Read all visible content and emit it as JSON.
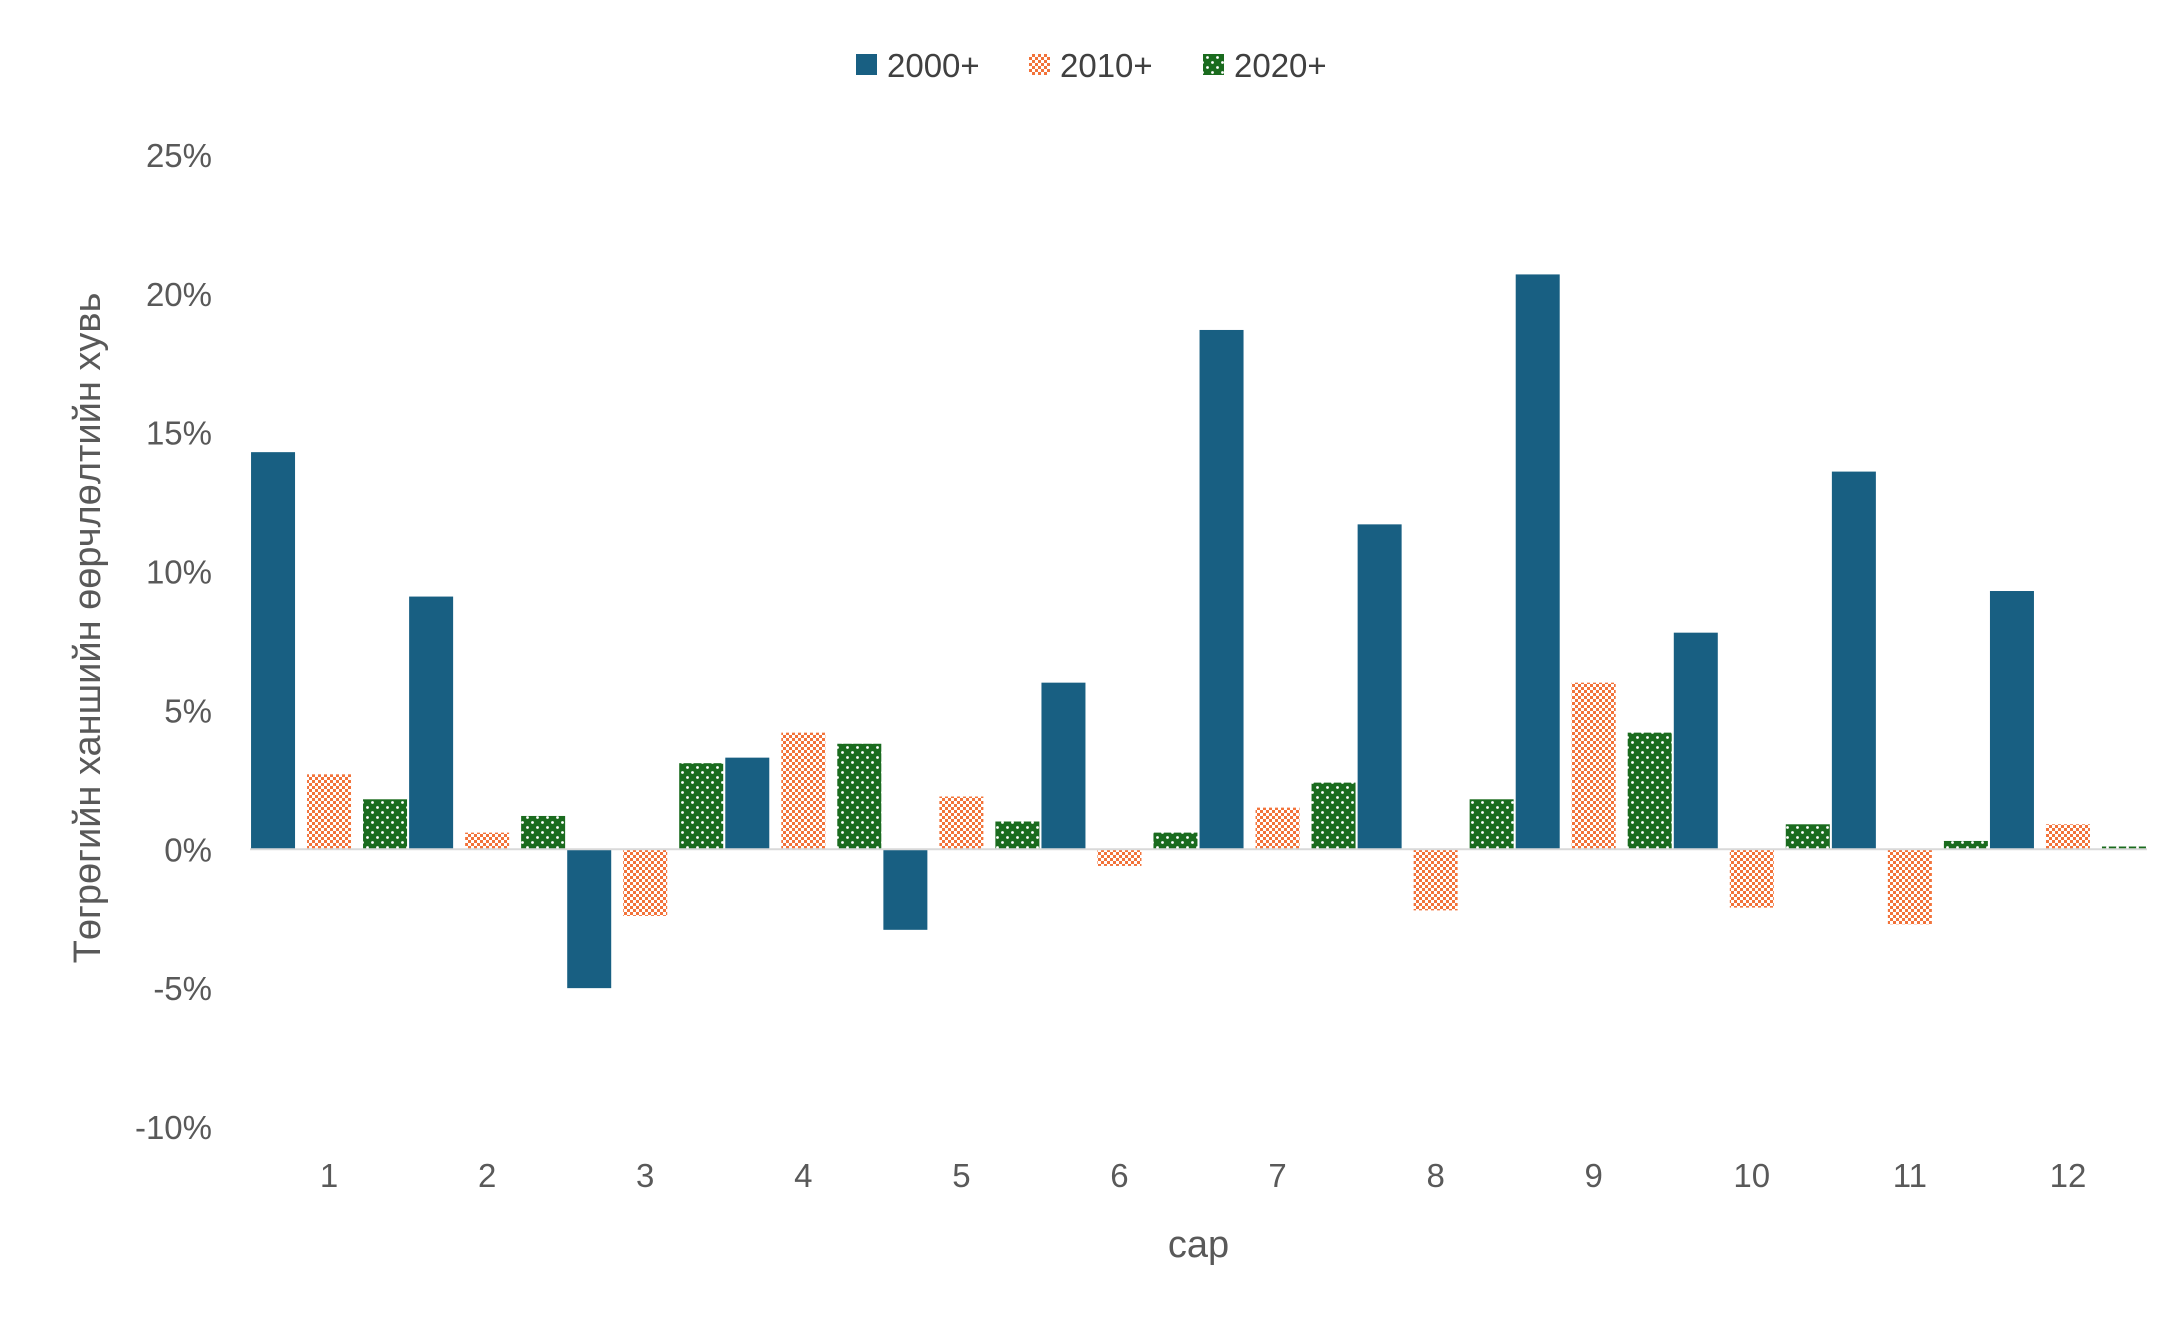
{
  "chart_data": {
    "type": "bar",
    "title": "",
    "xlabel": "сар",
    "ylabel": "Төгрөгийн ханшийн өөрчлөлтийн хувь",
    "categories": [
      "1",
      "2",
      "3",
      "4",
      "5",
      "6",
      "7",
      "8",
      "9",
      "10",
      "11",
      "12"
    ],
    "series": [
      {
        "name": "2000+",
        "values": [
          14.3,
          9.1,
          -5.0,
          3.3,
          -2.9,
          6.0,
          18.7,
          11.7,
          20.7,
          7.8,
          13.6,
          9.3
        ],
        "color": "#185F82",
        "pattern": "solid"
      },
      {
        "name": "2010+",
        "values": [
          2.7,
          0.6,
          -2.4,
          4.2,
          1.9,
          -0.6,
          1.5,
          -2.2,
          6.0,
          -2.1,
          -2.7,
          0.9
        ],
        "color": "#F2733A",
        "pattern": "checker"
      },
      {
        "name": "2020+",
        "values": [
          1.8,
          1.2,
          3.1,
          3.8,
          1.0,
          0.6,
          2.4,
          1.8,
          4.2,
          0.9,
          0.3,
          0.1
        ],
        "color": "#1A6B1E",
        "pattern": "dots"
      }
    ],
    "ylim": [
      -10,
      25
    ],
    "ytick_step": 5,
    "ytick_labels": [
      "-10%",
      "-5%",
      "0%",
      "5%",
      "10%",
      "15%",
      "20%",
      "25%"
    ],
    "grid": false,
    "legend_position": "top-center"
  }
}
